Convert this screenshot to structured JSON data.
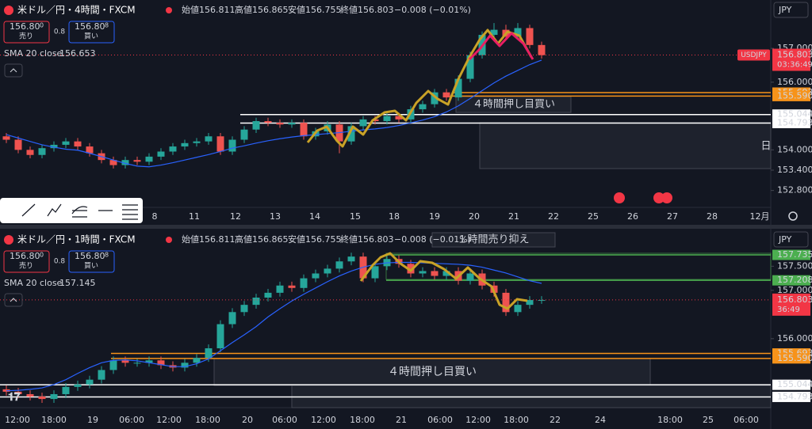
{
  "chart_data": [
    {
      "type": "candlestick",
      "title": "米ドル／円・4時間・FXCM",
      "ohlc_labels": [
        "始値",
        "高値",
        "安値",
        "終値"
      ],
      "ohlc_values": [
        156.811,
        156.865,
        156.755,
        156.803
      ],
      "change": "−0.008 (−0.01%)",
      "sell": {
        "price": "156.80",
        "pip": "0",
        "label": "売り"
      },
      "spread": "0.8",
      "buy": {
        "price": "156.80",
        "pip": "8",
        "label": "買い"
      },
      "currency": "JPY",
      "up_color": "#26a69a",
      "down_color": "#ef5350",
      "open": [
        154.4,
        154.3,
        154.0,
        153.85,
        154.05,
        154.15,
        154.25,
        154.1,
        153.9,
        153.7,
        153.55,
        153.7,
        153.65,
        153.8,
        153.95,
        154.1,
        154.2,
        154.25,
        154.4,
        153.95,
        154.3,
        154.6,
        154.85,
        154.8,
        154.75,
        154.8,
        154.4,
        154.55,
        154.75,
        154.25,
        154.7,
        154.9,
        154.85,
        155.0,
        154.9,
        155.2,
        155.35,
        155.7,
        155.55,
        156.1,
        156.8,
        157.4,
        157.55,
        157.35,
        157.6,
        157.1
      ],
      "high": [
        154.5,
        154.4,
        154.1,
        154.15,
        154.25,
        154.35,
        154.35,
        154.2,
        154.0,
        153.8,
        153.8,
        153.8,
        153.9,
        154.05,
        154.2,
        154.3,
        154.35,
        154.5,
        154.5,
        154.4,
        154.7,
        154.95,
        154.95,
        154.9,
        154.9,
        154.9,
        154.65,
        154.85,
        154.85,
        154.8,
        155.0,
        155.0,
        155.1,
        155.1,
        155.3,
        155.45,
        155.8,
        155.8,
        156.2,
        156.9,
        157.5,
        157.75,
        157.7,
        157.75,
        157.7,
        157.2
      ],
      "low": [
        154.2,
        153.9,
        153.75,
        153.75,
        153.95,
        154.05,
        154.0,
        153.8,
        153.6,
        153.45,
        153.45,
        153.55,
        153.55,
        153.7,
        153.85,
        154.0,
        154.1,
        154.15,
        153.85,
        153.85,
        154.2,
        154.5,
        154.7,
        154.65,
        154.65,
        154.3,
        154.3,
        154.45,
        153.9,
        154.15,
        154.6,
        154.75,
        154.75,
        154.8,
        154.8,
        155.1,
        155.25,
        155.45,
        155.45,
        156.0,
        156.7,
        157.3,
        157.25,
        157.25,
        157.0,
        156.7
      ],
      "close": [
        154.3,
        154.0,
        153.85,
        154.05,
        154.15,
        154.25,
        154.1,
        153.9,
        153.7,
        153.55,
        153.7,
        153.65,
        153.8,
        153.95,
        154.1,
        154.2,
        154.25,
        154.4,
        153.95,
        154.3,
        154.6,
        154.85,
        154.8,
        154.75,
        154.8,
        154.4,
        154.55,
        154.75,
        154.25,
        154.7,
        154.9,
        154.85,
        155.0,
        154.9,
        155.2,
        155.35,
        155.7,
        155.55,
        156.1,
        156.8,
        157.4,
        157.55,
        157.35,
        157.6,
        157.1,
        156.8
      ],
      "indicator": {
        "name": "SMA 20 close",
        "value": 156.653,
        "color": "#2962ff",
        "values": [
          154.45,
          154.35,
          154.25,
          154.15,
          154.08,
          154.02,
          153.99,
          153.9,
          153.8,
          153.7,
          153.6,
          153.52,
          153.5,
          153.55,
          153.62,
          153.7,
          153.78,
          153.86,
          153.95,
          154.05,
          154.12,
          154.2,
          154.27,
          154.33,
          154.38,
          154.42,
          154.45,
          154.48,
          154.51,
          154.55,
          154.59,
          154.62,
          154.66,
          154.72,
          154.8,
          154.88,
          154.98,
          155.12,
          155.3,
          155.52,
          155.75,
          155.98,
          156.18,
          156.35,
          156.52,
          156.653
        ]
      },
      "ylim": [
        152.3,
        158.43
      ],
      "yticks": [
        {
          "value": 152.8,
          "label": "152.800"
        },
        {
          "value": 153.4,
          "label": "153.400"
        },
        {
          "value": 154,
          "label": "154.000"
        },
        {
          "value": 156,
          "label": "156.000"
        },
        {
          "value": 157,
          "label": "157.000"
        }
      ],
      "x_axis_labels": [
        "8",
        "11",
        "12",
        "13",
        "14",
        "15",
        "18",
        "19",
        "20",
        "21",
        "22",
        "25",
        "26",
        "27",
        "28",
        "12月"
      ],
      "levels": [
        {
          "value": 155.693,
          "label": "155.693",
          "color": "#f7931a",
          "text_color": "#131722"
        },
        {
          "value": 155.59,
          "label": "155.590",
          "color": "#f7931a",
          "text_color": "#131722"
        },
        {
          "value": 155.044,
          "label": "155.044",
          "color": "#ffffff",
          "text_color": "#131722"
        },
        {
          "value": 154.793,
          "label": "154.793",
          "color": "#ffffff",
          "text_color": "#131722"
        }
      ],
      "price_tag": {
        "symbol": "USDJPY",
        "value": 156.803,
        "countdown": "03:36:49",
        "color": "#f23645"
      },
      "annotations": [
        "４時間押し目買い",
        "日"
      ]
    },
    {
      "type": "candlestick",
      "title": "米ドル／円・1時間・FXCM",
      "ohlc_labels": [
        "始値",
        "高値",
        "安値",
        "終値"
      ],
      "ohlc_values": [
        156.811,
        156.865,
        156.755,
        156.803
      ],
      "change": "−0.008 (−0.01%)",
      "sell": {
        "price": "156.80",
        "pip": "0",
        "label": "売り"
      },
      "spread": "0.8",
      "buy": {
        "price": "156.80",
        "pip": "8",
        "label": "買い"
      },
      "currency": "JPY",
      "up_color": "#26a69a",
      "down_color": "#ef5350",
      "open": [
        154.95,
        154.9,
        154.85,
        154.8,
        154.75,
        154.85,
        155.0,
        155.05,
        155.15,
        155.35,
        155.55,
        155.5,
        155.5,
        155.55,
        155.45,
        155.4,
        155.5,
        155.6,
        155.8,
        156.3,
        156.55,
        156.7,
        156.85,
        156.95,
        157.1,
        157.05,
        157.25,
        157.35,
        157.45,
        157.6,
        157.7,
        157.25,
        157.5,
        157.65,
        157.55,
        157.35,
        157.4,
        157.3,
        157.4,
        157.2,
        157.35,
        157.1,
        156.95,
        156.55,
        156.7,
        156.8
      ],
      "high": [
        155.03,
        154.98,
        154.93,
        154.88,
        154.93,
        155.08,
        155.13,
        155.23,
        155.43,
        155.63,
        155.63,
        155.58,
        155.63,
        155.63,
        155.53,
        155.58,
        155.68,
        155.88,
        156.38,
        156.63,
        156.78,
        156.93,
        157.03,
        157.18,
        157.18,
        157.33,
        157.43,
        157.53,
        157.68,
        157.78,
        157.78,
        157.58,
        157.73,
        157.73,
        157.63,
        157.48,
        157.48,
        157.48,
        157.48,
        157.43,
        157.43,
        157.18,
        157.03,
        156.78,
        156.88,
        156.88
      ],
      "low": [
        154.82,
        154.77,
        154.72,
        154.67,
        154.67,
        154.77,
        154.92,
        154.97,
        155.07,
        155.27,
        155.42,
        155.42,
        155.42,
        155.37,
        155.32,
        155.32,
        155.42,
        155.52,
        155.72,
        156.22,
        156.47,
        156.62,
        156.77,
        156.87,
        156.97,
        156.97,
        157.17,
        157.27,
        157.37,
        157.52,
        157.17,
        157.17,
        157.42,
        157.47,
        157.27,
        157.27,
        157.22,
        157.22,
        157.12,
        157.12,
        157.02,
        156.87,
        156.47,
        156.47,
        156.62,
        156.72
      ],
      "close": [
        154.9,
        154.85,
        154.8,
        154.75,
        154.85,
        155.0,
        155.05,
        155.15,
        155.35,
        155.55,
        155.5,
        155.5,
        155.55,
        155.45,
        155.4,
        155.5,
        155.6,
        155.8,
        156.3,
        156.55,
        156.7,
        156.85,
        156.95,
        157.1,
        157.05,
        157.25,
        157.35,
        157.45,
        157.6,
        157.7,
        157.25,
        157.5,
        157.65,
        157.55,
        157.35,
        157.4,
        157.3,
        157.4,
        157.2,
        157.35,
        157.1,
        156.95,
        156.55,
        156.7,
        156.8,
        156.8
      ],
      "indicator": {
        "name": "SMA 20 close",
        "value": 157.145,
        "color": "#2962ff",
        "values": [
          154.92,
          154.93,
          154.95,
          154.98,
          155.05,
          155.15,
          155.28,
          155.4,
          155.5,
          155.55,
          155.56,
          155.54,
          155.5,
          155.46,
          155.42,
          155.42,
          155.48,
          155.58,
          155.75,
          155.92,
          156.08,
          156.25,
          156.45,
          156.62,
          156.78,
          156.92,
          157.05,
          157.18,
          157.3,
          157.4,
          157.48,
          157.54,
          157.57,
          157.58,
          157.58,
          157.57,
          157.56,
          157.55,
          157.54,
          157.52,
          157.48,
          157.42,
          157.36,
          157.28,
          157.2,
          157.145
        ]
      },
      "ylim": [
        154.62,
        158.26
      ],
      "yticks": [
        {
          "value": 156,
          "label": "156.000"
        },
        {
          "value": 157,
          "label": "157.000"
        },
        {
          "value": 157.5,
          "label": "157.500"
        }
      ],
      "x_axis_labels": [
        "12:00",
        "18:00",
        "19",
        "06:00",
        "12:00",
        "18:00",
        "20",
        "06:00",
        "12:00",
        "18:00",
        "21",
        "06:00",
        "12:00",
        "18:00",
        "22",
        "24",
        "18:00",
        "25",
        "06:00"
      ],
      "levels": [
        {
          "value": 157.735,
          "label": "157.735",
          "color": "#4caf50",
          "text_color": "#ffffff"
        },
        {
          "value": 157.208,
          "label": "157.208",
          "color": "#4caf50",
          "text_color": "#ffffff"
        },
        {
          "value": 155.693,
          "label": "155.693",
          "color": "#f7931a",
          "text_color": "#131722"
        },
        {
          "value": 155.59,
          "label": "155.590",
          "color": "#f7931a",
          "text_color": "#131722"
        },
        {
          "value": 155.044,
          "label": "155.044",
          "color": "#ffffff",
          "text_color": "#131722"
        },
        {
          "value": 154.793,
          "label": "154.793",
          "color": "#ffffff",
          "text_color": "#131722"
        }
      ],
      "price_tag": {
        "value": 156.803,
        "countdown": "36:49",
        "color": "#f23645"
      },
      "annotations": [
        "１時間売り抑え",
        "４時間押し目買い"
      ]
    }
  ]
}
